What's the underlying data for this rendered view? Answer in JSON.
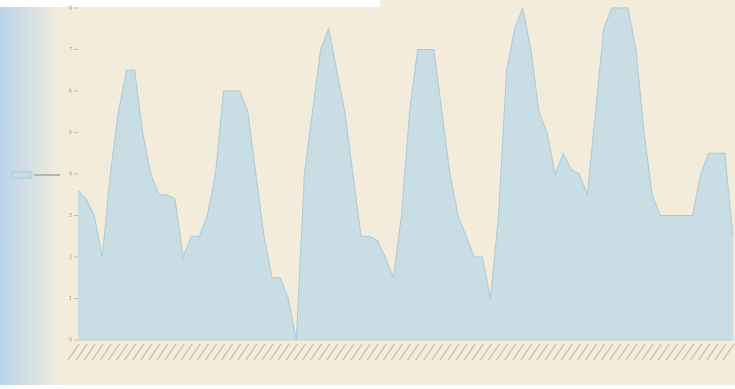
{
  "chart_data": {
    "type": "area",
    "series": [
      {
        "color": "#c6dce6",
        "values": [
          3.6,
          3.4,
          3.0,
          2.0,
          4.0,
          5.5,
          6.5,
          6.5,
          5.0,
          4.0,
          3.5,
          3.5,
          3.4,
          2.0,
          2.5,
          2.5,
          3.0,
          4.0,
          6.0,
          6.0,
          6.0,
          5.5,
          4.0,
          2.5,
          1.5,
          1.5,
          1.0,
          0,
          4.0,
          5.5,
          7.0,
          7.5,
          6.5,
          5.5,
          4.0,
          2.5,
          2.5,
          2.4,
          2.0,
          1.5,
          3.0,
          5.5,
          7.0,
          7.0,
          7.0,
          5.5,
          4.0,
          3.0,
          2.5,
          2.0,
          2.0,
          1.0,
          3.0,
          6.5,
          7.5,
          8,
          7.0,
          5.5,
          5.0,
          4.0,
          4.5,
          4.1,
          4.0,
          3.5,
          5.5,
          7.5,
          8,
          8,
          8,
          7.0,
          5.0,
          3.5,
          3.0,
          3.0,
          3.0,
          3.0,
          3.0,
          4.0,
          4.5,
          4.5,
          4.5,
          2.5
        ]
      }
    ],
    "ylim": [
      0,
      8
    ],
    "yticks": [
      0,
      1,
      2,
      3,
      4,
      5,
      6,
      7,
      8
    ]
  }
}
